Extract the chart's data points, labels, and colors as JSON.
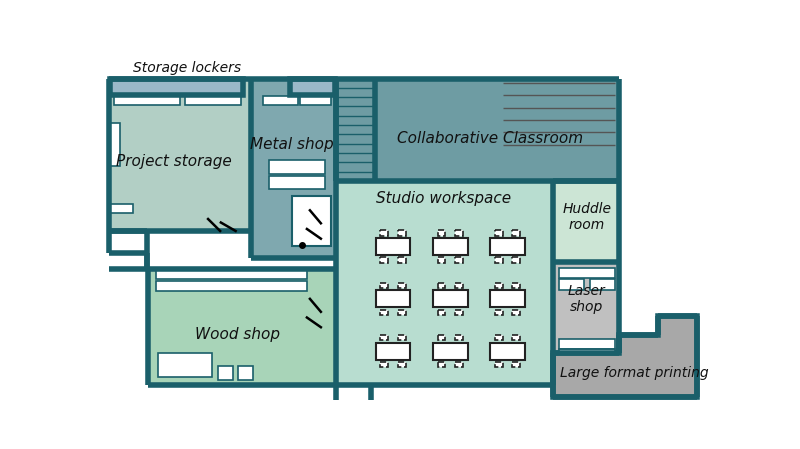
{
  "bg_color": "#ffffff",
  "wall_color": "#1a5f6a",
  "wall_lw": 4.0,
  "project_storage_color": "#b2cfc5",
  "metal_shop_color": "#7fa8af",
  "collaborative_color": "#6e9ca3",
  "studio_color": "#b8ddd0",
  "wood_shop_color": "#a8d4b8",
  "huddle_color": "#cce5d5",
  "laser_color": "#c0c0c0",
  "large_format_color": "#a8a8a8",
  "storage_locker_color": "#9ab8c8",
  "labels": {
    "storage_lockers": "Storage lockers",
    "project_storage": "Project storage",
    "metal_shop": "Metal shop",
    "collaborative": "Collaborative Classroom",
    "studio": "Studio workspace",
    "wood_shop": "Wood shop",
    "huddle": "Huddle\nroom",
    "laser": "Laser\nshop",
    "large_format": "Large format printing"
  }
}
